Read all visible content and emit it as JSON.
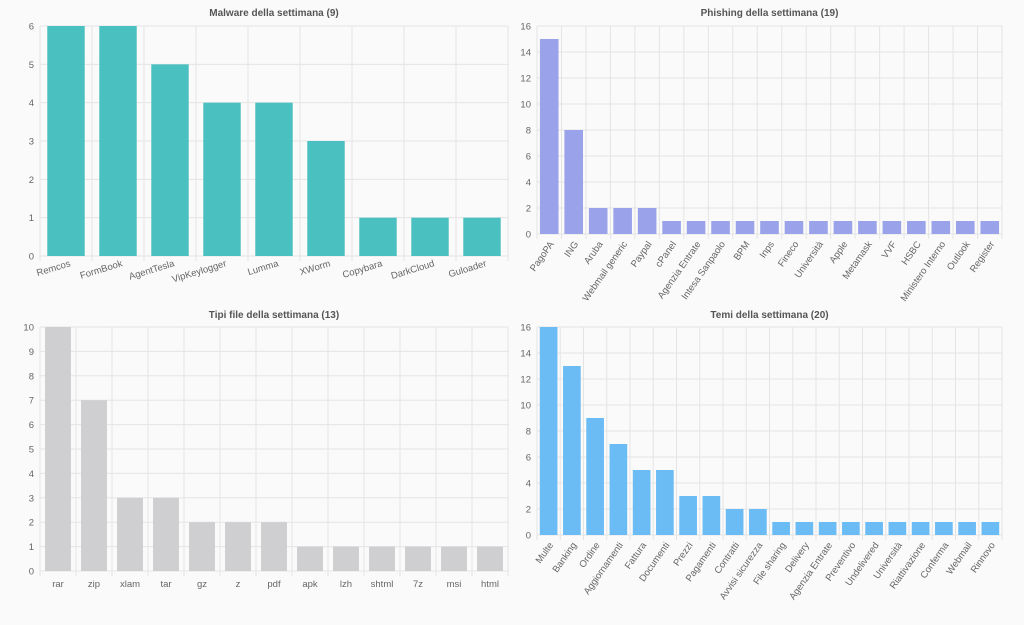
{
  "chart_data": [
    {
      "type": "bar",
      "title": "Malware della settimana (9)",
      "categories": [
        "Remcos",
        "FormBook",
        "AgentTesla",
        "VipKeylogger",
        "Lumma",
        "XWorm",
        "Copybara",
        "DarkCloud",
        "Guloader"
      ],
      "values": [
        6,
        6,
        5,
        4,
        4,
        3,
        1,
        1,
        1
      ],
      "ylim": [
        0,
        6
      ],
      "yticks": [
        0,
        1,
        2,
        3,
        4,
        5,
        6
      ],
      "color": "#4bc0c0",
      "grid": true,
      "xlabel": "",
      "ylabel": ""
    },
    {
      "type": "bar",
      "title": "Phishing della settimana (19)",
      "categories": [
        "PagoPA",
        "ING",
        "Aruba",
        "Webmail generic",
        "Paypal",
        "cPanel",
        "Agenzia Entrate",
        "Intesa Sanpaolo",
        "BPM",
        "Inps",
        "Fineco",
        "Università",
        "Apple",
        "Metamask",
        "VVF",
        "HSBC",
        "Ministero Interno",
        "Outlook",
        "Register"
      ],
      "values": [
        15,
        8,
        2,
        2,
        2,
        1,
        1,
        1,
        1,
        1,
        1,
        1,
        1,
        1,
        1,
        1,
        1,
        1,
        1
      ],
      "ylim": [
        0,
        16
      ],
      "yticks": [
        0,
        2,
        4,
        6,
        8,
        10,
        12,
        14,
        16
      ],
      "color": "#9aa3ea",
      "grid": true,
      "xlabel": "",
      "ylabel": ""
    },
    {
      "type": "bar",
      "title": "Tipi file della settimana (13)",
      "categories": [
        "rar",
        "zip",
        "xlam",
        "tar",
        "gz",
        "z",
        "pdf",
        "apk",
        "lzh",
        "shtml",
        "7z",
        "msi",
        "html"
      ],
      "values": [
        10,
        7,
        3,
        3,
        2,
        2,
        2,
        1,
        1,
        1,
        1,
        1,
        1
      ],
      "ylim": [
        0,
        10
      ],
      "yticks": [
        0,
        1,
        2,
        3,
        4,
        5,
        6,
        7,
        8,
        9,
        10
      ],
      "color": "#cfcfd1",
      "grid": true,
      "xlabel": "",
      "ylabel": ""
    },
    {
      "type": "bar",
      "title": "Temi della settimana (20)",
      "categories": [
        "Multe",
        "Banking",
        "Ordine",
        "Aggiornamenti",
        "Fattura",
        "Documenti",
        "Prezzi",
        "Pagamenti",
        "Contratti",
        "Avvisi sicurezza",
        "File sharing",
        "Delivery",
        "Agenzia Entrate",
        "Preventivo",
        "Undelivered",
        "Università",
        "Riattivazione",
        "Conferma",
        "Webmail",
        "Rinnovo"
      ],
      "values": [
        16,
        13,
        9,
        7,
        5,
        5,
        3,
        3,
        2,
        2,
        1,
        1,
        1,
        1,
        1,
        1,
        1,
        1,
        1,
        1
      ],
      "ylim": [
        0,
        16
      ],
      "yticks": [
        0,
        2,
        4,
        6,
        8,
        10,
        12,
        14,
        16
      ],
      "color": "#6bbcf5",
      "grid": true,
      "xlabel": "",
      "ylabel": ""
    }
  ]
}
